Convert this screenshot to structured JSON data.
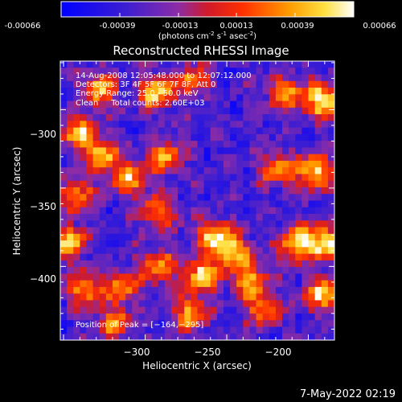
{
  "colorbar": {
    "ticks": [
      "-0.00066",
      "-0.00039",
      "-0.00013",
      "0.00013",
      "0.00039",
      "0.00066"
    ],
    "unit_main": "(photons cm",
    "unit_exp1": "-2",
    "unit_s": " s",
    "unit_exp2": "-1",
    "unit_asec": " asec",
    "unit_exp3": "-2",
    "unit_close": ")",
    "colormap": "blue-purple-red-yellow-white"
  },
  "chart_data": {
    "type": "heatmap",
    "title": "Reconstructed RHESSI Image",
    "xlabel": "Heliocentric X (arcsec)",
    "ylabel": "Heliocentric Y (arcsec)",
    "xlim": [
      -352,
      -184
    ],
    "ylim": [
      -447,
      -269
    ],
    "x_ticks": [
      -300,
      -250,
      -200
    ],
    "y_ticks": [
      -300,
      -350,
      -400
    ],
    "x_tick_labels": [
      "−300",
      "−250",
      "−200"
    ],
    "y_tick_labels": [
      "−300",
      "−350",
      "−400"
    ],
    "value_range": [
      -0.00066,
      0.00066
    ],
    "info_lines": [
      "14-Aug-2008 12:05:48.000 to 12:07:12.000",
      "Detectors: 3F 4F 5F 6F 7F 8F, Att 0",
      "Energy Range: 25.0 - 50.0 keV",
      "Clean     Total counts: 2.60E+03"
    ],
    "peak_label": "Position of Peak = [−164,−295]",
    "peak": [
      -164,
      -295
    ],
    "bright_sources": [
      {
        "x": -328,
        "y": -287,
        "v": 0.00045
      },
      {
        "x": -293,
        "y": -289,
        "v": 0.00052
      },
      {
        "x": -270,
        "y": -281,
        "v": 0.0003
      },
      {
        "x": -214,
        "y": -290,
        "v": 0.0004
      },
      {
        "x": -191,
        "y": -294,
        "v": 0.00066
      },
      {
        "x": -340,
        "y": -315,
        "v": 0.0005
      },
      {
        "x": -326,
        "y": -330,
        "v": 0.00045
      },
      {
        "x": -310,
        "y": -344,
        "v": 0.0004
      },
      {
        "x": -288,
        "y": -330,
        "v": 0.00035
      },
      {
        "x": -196,
        "y": -340,
        "v": 0.0006
      },
      {
        "x": -219,
        "y": -338,
        "v": 0.00032
      },
      {
        "x": -342,
        "y": -355,
        "v": 0.00035
      },
      {
        "x": -292,
        "y": -366,
        "v": 0.00035
      },
      {
        "x": -258,
        "y": -381,
        "v": 0.00055
      },
      {
        "x": -246,
        "y": -390,
        "v": 0.0004
      },
      {
        "x": -208,
        "y": -385,
        "v": 0.00055
      },
      {
        "x": -190,
        "y": -385,
        "v": 0.00064
      },
      {
        "x": -346,
        "y": -385,
        "v": 0.00045
      },
      {
        "x": -337,
        "y": -415,
        "v": 0.00035
      },
      {
        "x": -314,
        "y": -413,
        "v": 0.0003
      },
      {
        "x": -292,
        "y": -400,
        "v": 0.0004
      },
      {
        "x": -265,
        "y": -405,
        "v": 0.00055
      },
      {
        "x": -236,
        "y": -408,
        "v": 0.00045
      },
      {
        "x": -228,
        "y": -427,
        "v": 0.0003
      },
      {
        "x": -191,
        "y": -418,
        "v": 0.0005
      },
      {
        "x": -272,
        "y": -430,
        "v": 0.0004
      },
      {
        "x": -320,
        "y": -436,
        "v": 0.0003
      }
    ]
  },
  "footer": {
    "date": "7-May-2022 02:19"
  }
}
